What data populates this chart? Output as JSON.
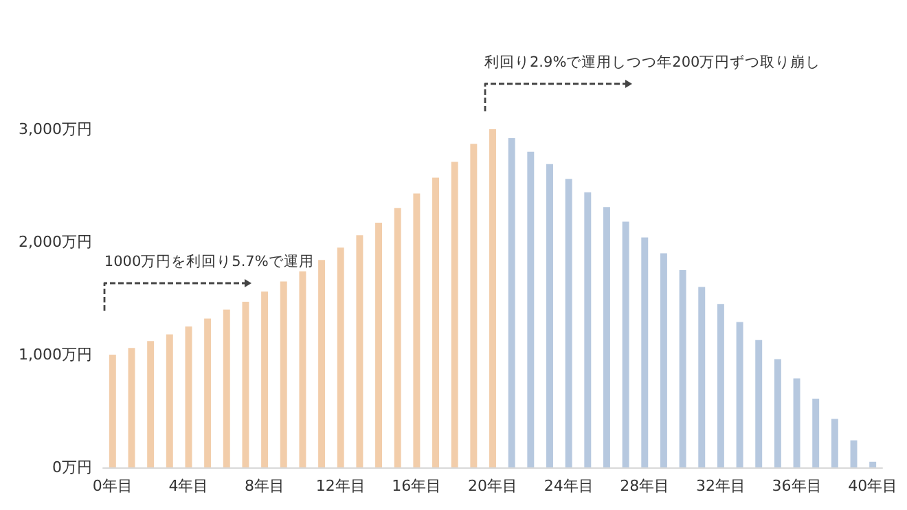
{
  "chart_data": {
    "type": "bar",
    "categories": [
      "0年目",
      null,
      null,
      null,
      "4年目",
      null,
      null,
      null,
      "8年目",
      null,
      null,
      null,
      "12年目",
      null,
      null,
      null,
      "16年目",
      null,
      null,
      null,
      "20年目",
      null,
      null,
      null,
      "24年目",
      null,
      null,
      null,
      "28年目",
      null,
      null,
      null,
      "32年目",
      null,
      null,
      null,
      "36年目",
      null,
      null,
      null,
      "40年目"
    ],
    "values": [
      1000,
      1060,
      1120,
      1180,
      1250,
      1320,
      1400,
      1470,
      1560,
      1650,
      1740,
      1840,
      1950,
      2060,
      2170,
      2300,
      2430,
      2570,
      2710,
      2870,
      3000,
      2920,
      2800,
      2690,
      2560,
      2440,
      2310,
      2180,
      2040,
      1900,
      1750,
      1600,
      1450,
      1290,
      1130,
      960,
      790,
      610,
      430,
      240,
      50
    ],
    "colors": [
      "#f2cdaa",
      "#f2cdaa",
      "#f2cdaa",
      "#f2cdaa",
      "#f2cdaa",
      "#f2cdaa",
      "#f2cdaa",
      "#f2cdaa",
      "#f2cdaa",
      "#f2cdaa",
      "#f2cdaa",
      "#f2cdaa",
      "#f2cdaa",
      "#f2cdaa",
      "#f2cdaa",
      "#f2cdaa",
      "#f2cdaa",
      "#f2cdaa",
      "#f2cdaa",
      "#f2cdaa",
      "#f2cdaa",
      "#b6c8df",
      "#b6c8df",
      "#b6c8df",
      "#b6c8df",
      "#b6c8df",
      "#b6c8df",
      "#b6c8df",
      "#b6c8df",
      "#b6c8df",
      "#b6c8df",
      "#b6c8df",
      "#b6c8df",
      "#b6c8df",
      "#b6c8df",
      "#b6c8df",
      "#b6c8df",
      "#b6c8df",
      "#b6c8df",
      "#b6c8df",
      "#b6c8df"
    ],
    "ylim": [
      0,
      3000
    ],
    "yticks": [
      {
        "value": 0,
        "label": "0万円"
      },
      {
        "value": 1000,
        "label": "1,000万円"
      },
      {
        "value": 2000,
        "label": "2,000万円"
      },
      {
        "value": 3000,
        "label": "3,000万円"
      }
    ],
    "grid": false,
    "annotations": [
      "1000万円を利回り5.7%で運用",
      "利回り2.9%で運用しつつ年200万円ずつ取り崩し"
    ]
  }
}
